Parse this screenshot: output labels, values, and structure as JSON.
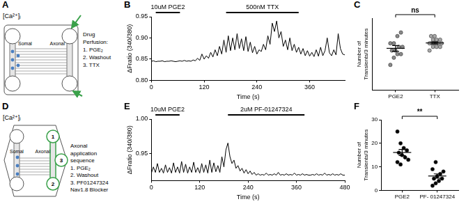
{
  "diagrams": [
    {
      "panel": "A",
      "indicator": "[Ca²⁺]ᵢ",
      "compartments": [
        "Somal",
        "Axonal"
      ],
      "protocol_title": "Drug Perfusion:",
      "steps": [
        "1. PGE₂",
        "2. Washout",
        "3. TTX"
      ]
    },
    {
      "panel": "D",
      "indicator": "[Ca²⁺]ᵢ",
      "compartments": [
        "Somal",
        "Axonal"
      ],
      "wells": [
        "1",
        "2",
        "3"
      ],
      "protocol_title": "Axonal application sequence",
      "steps": [
        "1. PGE₂",
        "2. Washout",
        "3. PF01247324"
      ],
      "note": "Nav1.8 Blocker"
    }
  ],
  "chart_data": [
    {
      "panel": "B",
      "type": "line",
      "x_label": "Time (s)",
      "y_label": "ΔFratio (340/380)",
      "color": "#000000",
      "marker": "none",
      "line_style": "solid",
      "grid": false,
      "xlim": [
        0,
        440
      ],
      "xticks": [
        0,
        120,
        240,
        360
      ],
      "ylim": [
        0.8,
        0.95
      ],
      "yticks": [
        {
          "value": 0.8,
          "label": "0.80"
        },
        {
          "value": 0.85,
          "label": "0.85"
        },
        {
          "value": 0.9,
          "label": "0.90"
        },
        {
          "value": 0.95,
          "label": "0.95"
        }
      ],
      "annotations": [
        {
          "text": "10uM PGE2",
          "x": [
            10,
            65
          ]
        },
        {
          "text": "500nM TTX",
          "x": [
            170,
            335
          ]
        }
      ],
      "x": [
        0,
        5,
        10,
        15,
        20,
        25,
        30,
        35,
        40,
        45,
        50,
        55,
        60,
        65,
        70,
        75,
        80,
        85,
        90,
        95,
        100,
        105,
        110,
        115,
        120,
        125,
        130,
        135,
        140,
        145,
        150,
        155,
        160,
        165,
        170,
        175,
        180,
        185,
        190,
        195,
        200,
        205,
        210,
        215,
        220,
        225,
        230,
        235,
        240,
        245,
        250,
        255,
        260,
        265,
        270,
        275,
        280,
        285,
        290,
        295,
        300,
        305,
        310,
        315,
        320,
        325,
        330,
        335,
        340,
        345,
        350,
        355,
        360,
        365,
        370,
        375,
        380,
        385,
        390,
        395,
        400,
        405,
        410,
        415,
        420,
        425,
        430,
        435,
        440
      ],
      "values": [
        0.845,
        0.846,
        0.844,
        0.845,
        0.845,
        0.846,
        0.844,
        0.845,
        0.845,
        0.846,
        0.845,
        0.844,
        0.845,
        0.846,
        0.845,
        0.847,
        0.845,
        0.846,
        0.845,
        0.848,
        0.846,
        0.852,
        0.847,
        0.862,
        0.85,
        0.858,
        0.852,
        0.866,
        0.855,
        0.872,
        0.858,
        0.88,
        0.862,
        0.895,
        0.866,
        0.905,
        0.87,
        0.9,
        0.872,
        0.91,
        0.875,
        0.898,
        0.87,
        0.903,
        0.868,
        0.89,
        0.865,
        0.88,
        0.862,
        0.872,
        0.868,
        0.885,
        0.872,
        0.905,
        0.885,
        0.935,
        0.915,
        0.94,
        0.9,
        0.915,
        0.88,
        0.895,
        0.872,
        0.9,
        0.87,
        0.885,
        0.866,
        0.878,
        0.862,
        0.875,
        0.858,
        0.87,
        0.857,
        0.866,
        0.856,
        0.872,
        0.857,
        0.878,
        0.858,
        0.87,
        0.9,
        0.865,
        0.858,
        0.872,
        0.86,
        0.91,
        0.875,
        0.862,
        0.86
      ]
    },
    {
      "panel": "C",
      "type": "scatter",
      "y_label": "Number of Transients/3 minutes",
      "grid": false,
      "tick_labels": "x",
      "marker": "circle",
      "categories": [
        "PGE2",
        "TTX"
      ],
      "colors": [
        "#8a8a8a",
        "#a8a8a8"
      ],
      "ylim": [
        0,
        20
      ],
      "values": [
        [
          7,
          9,
          10,
          10,
          11,
          11,
          12,
          12,
          13,
          13,
          15,
          16
        ],
        [
          11,
          12,
          12,
          12,
          13,
          13,
          13,
          13,
          13,
          14,
          14,
          14,
          15,
          15
        ]
      ],
      "mean": [
        11.6,
        13.1
      ],
      "sem": [
        0.8,
        0.3
      ],
      "annotations": [
        {
          "text": "ns"
        }
      ]
    },
    {
      "panel": "E",
      "type": "line",
      "x_label": "Time (s)",
      "y_label": "ΔFratio (340/380)",
      "color": "#000000",
      "marker": "none",
      "line_style": "solid",
      "grid": false,
      "xlim": [
        0,
        480
      ],
      "xticks": [
        0,
        120,
        240,
        360,
        480
      ],
      "ylim": [
        0.91,
        1.0
      ],
      "yticks": [
        {
          "value": 0.95,
          "label": "0.95"
        },
        {
          "value": 1.0,
          "label": "1.00"
        }
      ],
      "annotations": [
        {
          "text": "10uM PGE2",
          "x": [
            10,
            70
          ]
        },
        {
          "text": "2uM PF-01247324",
          "x": [
            190,
            380
          ]
        }
      ],
      "x": [
        0,
        5,
        10,
        15,
        20,
        25,
        30,
        35,
        40,
        45,
        50,
        55,
        60,
        65,
        70,
        75,
        80,
        85,
        90,
        95,
        100,
        105,
        110,
        115,
        120,
        125,
        130,
        135,
        140,
        145,
        150,
        155,
        160,
        165,
        170,
        175,
        180,
        185,
        190,
        195,
        200,
        205,
        210,
        215,
        220,
        225,
        230,
        235,
        240,
        245,
        250,
        255,
        260,
        265,
        270,
        275,
        280,
        285,
        290,
        295,
        300,
        305,
        310,
        315,
        320,
        325,
        330,
        335,
        340,
        345,
        350,
        355,
        360,
        365,
        370,
        375,
        380,
        385,
        390,
        395,
        400,
        405,
        410,
        415,
        420,
        425,
        430,
        435,
        440,
        445,
        450,
        455,
        460,
        465,
        470,
        475,
        480
      ],
      "values": [
        0.921,
        0.93,
        0.922,
        0.935,
        0.922,
        0.928,
        0.921,
        0.933,
        0.922,
        0.929,
        0.921,
        0.936,
        0.922,
        0.93,
        0.921,
        0.938,
        0.922,
        0.934,
        0.921,
        0.93,
        0.922,
        0.937,
        0.922,
        0.929,
        0.921,
        0.935,
        0.922,
        0.933,
        0.921,
        0.94,
        0.922,
        0.936,
        0.923,
        0.932,
        0.922,
        0.945,
        0.93,
        0.955,
        0.965,
        0.945,
        0.935,
        0.94,
        0.928,
        0.932,
        0.924,
        0.928,
        0.921,
        0.926,
        0.92,
        0.924,
        0.919,
        0.922,
        0.918,
        0.92,
        0.918,
        0.919,
        0.918,
        0.921,
        0.918,
        0.919,
        0.918,
        0.92,
        0.918,
        0.922,
        0.918,
        0.919,
        0.918,
        0.92,
        0.918,
        0.919,
        0.918,
        0.921,
        0.918,
        0.919,
        0.918,
        0.92,
        0.918,
        0.919,
        0.918,
        0.918,
        0.919,
        0.918,
        0.92,
        0.918,
        0.919,
        0.918,
        0.921,
        0.918,
        0.919,
        0.918,
        0.92,
        0.918,
        0.919,
        0.918,
        0.92,
        0.918,
        0.918
      ]
    },
    {
      "panel": "F",
      "type": "scatter",
      "y_label": "Number of Transients/3 minutes",
      "grid": false,
      "marker": "circle",
      "categories": [
        "PGE2",
        "PF- 01247324"
      ],
      "colors": [
        "#000000",
        "#000000"
      ],
      "ylim": [
        0,
        30
      ],
      "yticks": [
        0,
        10,
        20,
        30
      ],
      "values": [
        [
          25,
          20,
          18,
          17,
          16,
          15,
          14,
          13,
          12,
          11
        ],
        [
          2,
          3,
          4,
          5,
          5,
          6,
          7,
          8,
          9,
          12
        ]
      ],
      "mean": [
        16.1,
        6.1
      ],
      "sem": [
        1.3,
        0.9
      ],
      "annotations": [
        {
          "text": "**"
        }
      ]
    }
  ]
}
